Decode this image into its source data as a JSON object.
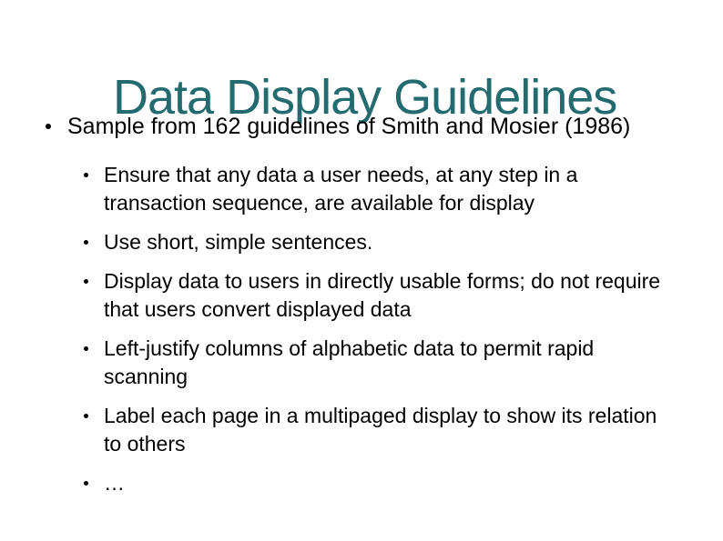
{
  "slide": {
    "title": "Data Display Guidelines",
    "title_color": "#236b6e",
    "title_fontsize": 54,
    "background_color": "#ffffff",
    "main_bullet": "Sample from 162 guidelines of Smith and Mosier (1986)",
    "body_fontsize": 25,
    "sub_fontsize": 23,
    "text_color": "#000000",
    "sub_bullets": [
      "Ensure that any data a user needs, at any step in a transaction sequence, are available for display",
      "Use short, simple sentences.",
      "Display data to users in directly usable forms; do not require that users convert displayed data",
      "Left-justify columns of alphabetic data to permit rapid scanning",
      "Label each page in a multipaged display to show its relation to others",
      "…"
    ]
  }
}
